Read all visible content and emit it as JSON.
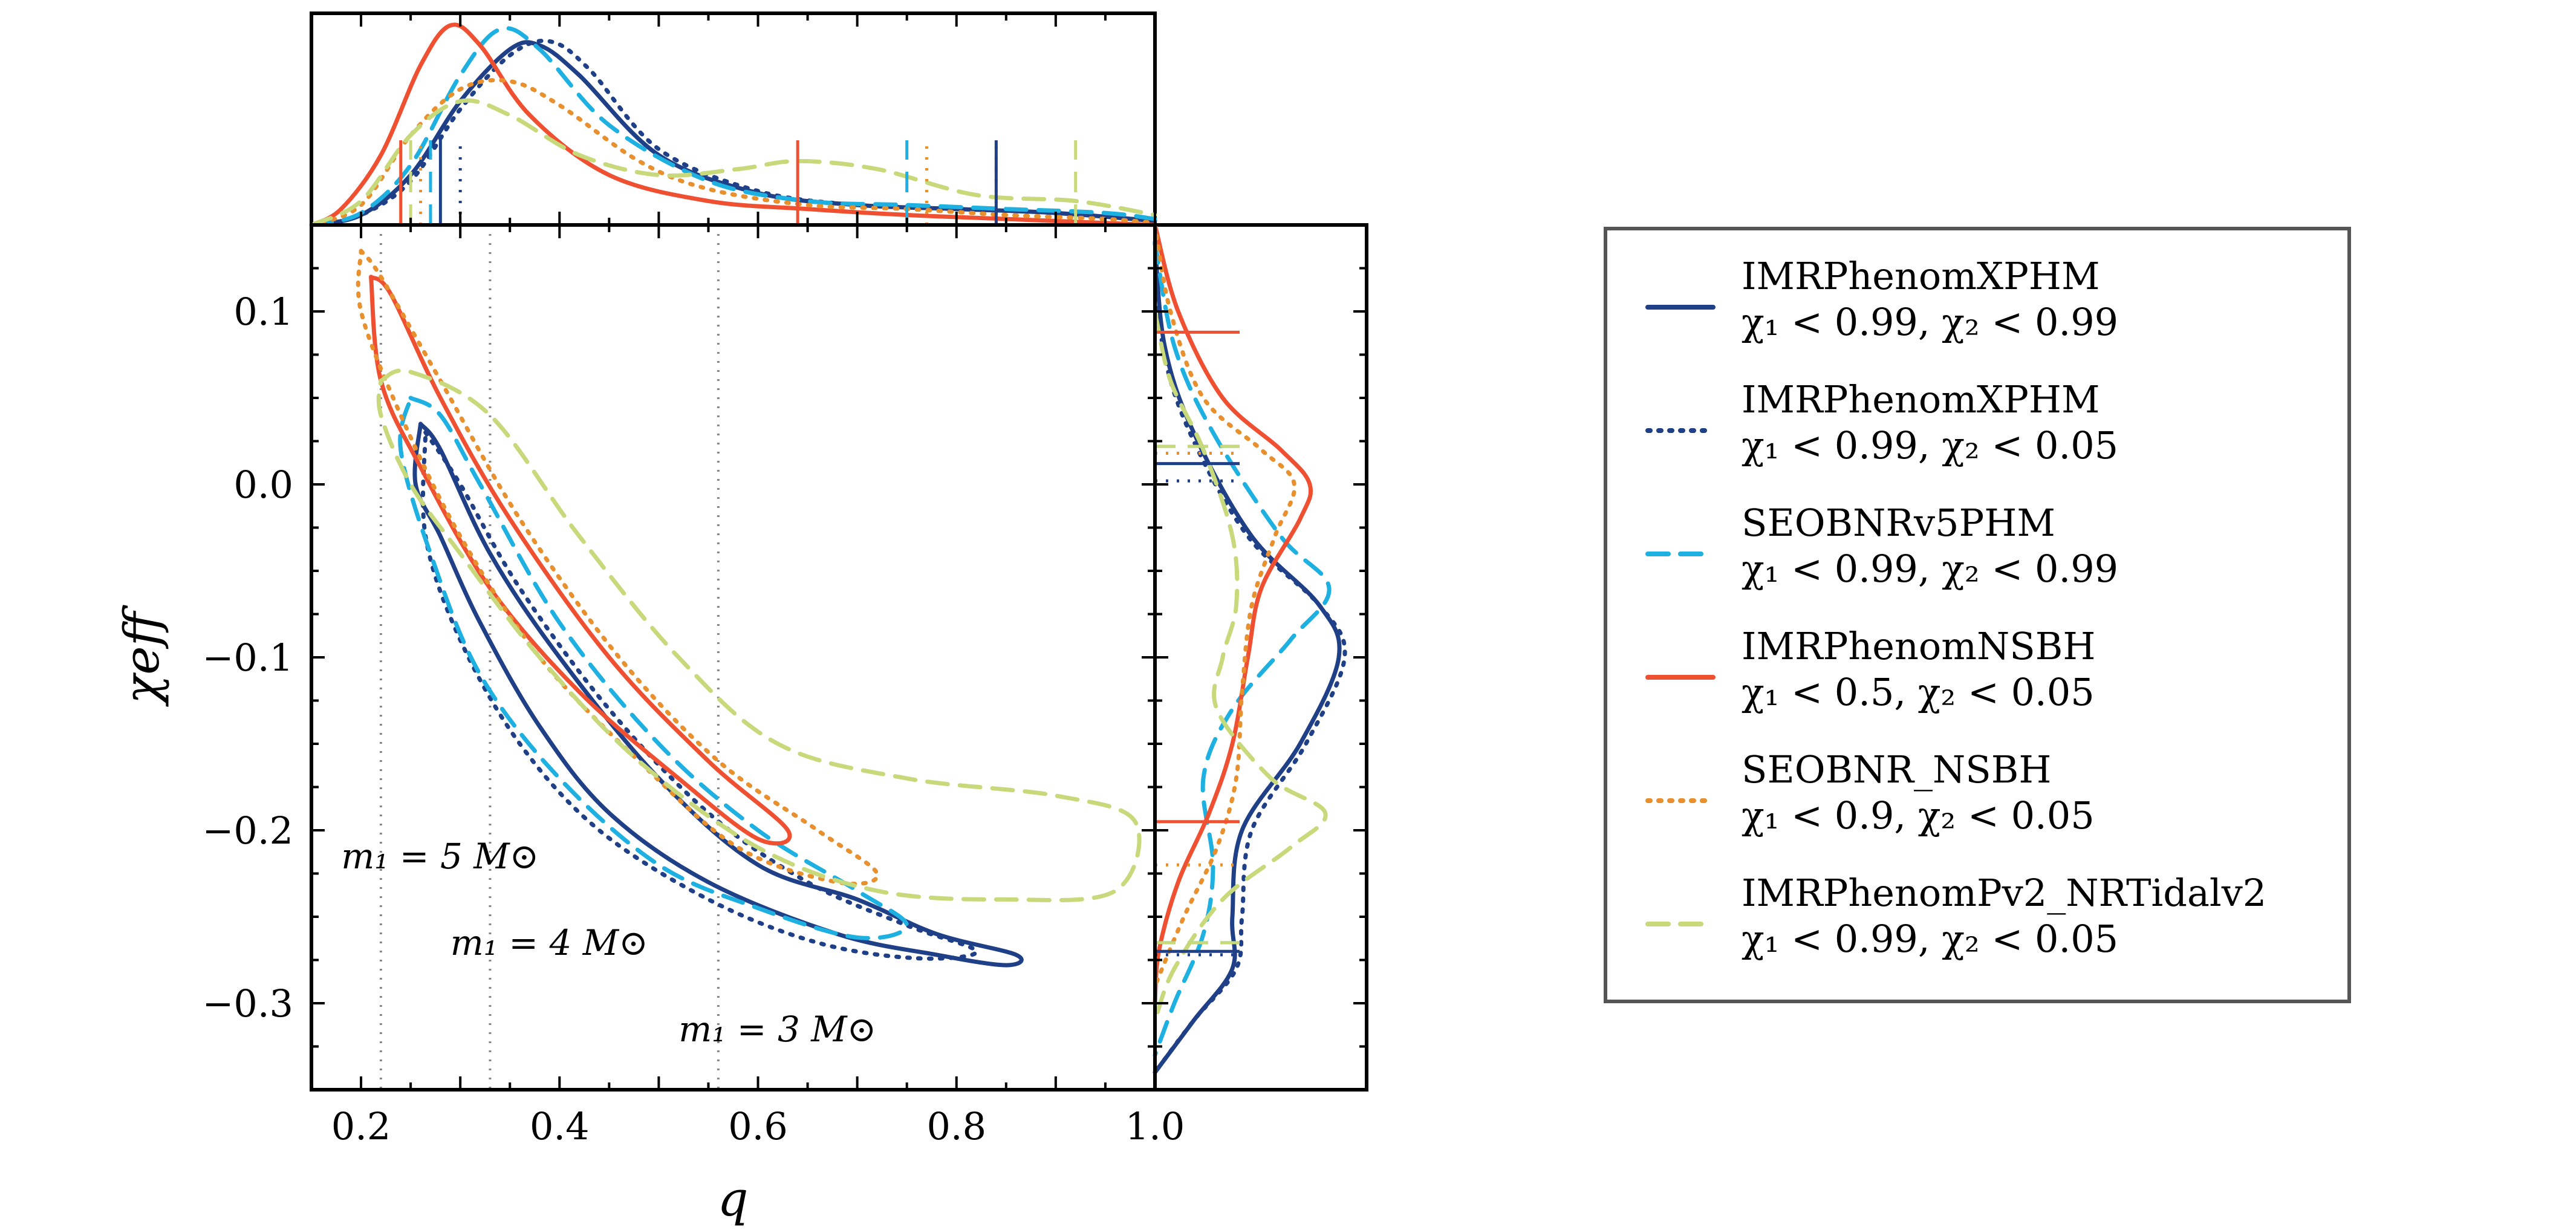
{
  "chart_data": {
    "type": "line",
    "title": "",
    "xlabel": "q",
    "ylabel": "χeff",
    "xlim": [
      0.15,
      1.0
    ],
    "ylim": [
      -0.35,
      0.15
    ],
    "xticks": [
      "0.2",
      "0.4",
      "0.6",
      "0.8",
      "1.0"
    ],
    "xtick_values": [
      0.2,
      0.4,
      0.6,
      0.8,
      1.0
    ],
    "yticks": [
      "0.1",
      "0.0",
      "−0.1",
      "−0.2",
      "−0.3"
    ],
    "ytick_values": [
      0.1,
      0.0,
      -0.1,
      -0.2,
      -0.3
    ],
    "mass_lines": [
      {
        "q": 0.22,
        "label": "m₁ = 5 M⊙",
        "label_q": 0.18,
        "label_chi": -0.222
      },
      {
        "q": 0.33,
        "label": "m₁ = 4 M⊙",
        "label_q": 0.29,
        "label_chi": -0.272
      },
      {
        "q": 0.56,
        "label": "m₁ = 3 M⊙",
        "label_q": 0.52,
        "label_chi": -0.322
      }
    ],
    "series": [
      {
        "name": "IMRPhenomXPHM",
        "constraint": "χ₁ < 0.99, χ₂ < 0.99",
        "color": "#1f3f87",
        "dash": "solid",
        "contour": [
          [
            0.26,
            0.035
          ],
          [
            0.28,
            0.02
          ],
          [
            0.33,
            -0.04
          ],
          [
            0.4,
            -0.1
          ],
          [
            0.5,
            -0.17
          ],
          [
            0.6,
            -0.22
          ],
          [
            0.7,
            -0.24
          ],
          [
            0.78,
            -0.26
          ],
          [
            0.86,
            -0.272
          ],
          [
            0.85,
            -0.278
          ],
          [
            0.78,
            -0.272
          ],
          [
            0.68,
            -0.26
          ],
          [
            0.55,
            -0.23
          ],
          [
            0.45,
            -0.19
          ],
          [
            0.38,
            -0.14
          ],
          [
            0.32,
            -0.08
          ],
          [
            0.28,
            -0.03
          ],
          [
            0.255,
            0.0
          ],
          [
            0.26,
            0.035
          ]
        ],
        "q_marginal": [
          [
            0.15,
            0.0
          ],
          [
            0.2,
            0.05
          ],
          [
            0.25,
            0.25
          ],
          [
            0.3,
            0.62
          ],
          [
            0.35,
            0.88
          ],
          [
            0.38,
            0.9
          ],
          [
            0.42,
            0.75
          ],
          [
            0.5,
            0.35
          ],
          [
            0.6,
            0.16
          ],
          [
            0.7,
            0.1
          ],
          [
            0.8,
            0.08
          ],
          [
            0.9,
            0.06
          ],
          [
            1.0,
            0.02
          ]
        ],
        "q_interval": [
          0.28,
          0.84
        ],
        "chi_marginal": [
          [
            0.14,
            0.0
          ],
          [
            0.08,
            0.05
          ],
          [
            0.03,
            0.2
          ],
          [
            -0.03,
            0.5
          ],
          [
            -0.07,
            0.85
          ],
          [
            -0.1,
            0.95
          ],
          [
            -0.15,
            0.75
          ],
          [
            -0.2,
            0.45
          ],
          [
            -0.25,
            0.4
          ],
          [
            -0.28,
            0.4
          ],
          [
            -0.31,
            0.2
          ],
          [
            -0.34,
            0.0
          ]
        ],
        "chi_interval": [
          -0.27,
          0.012
        ]
      },
      {
        "name": "IMRPhenomXPHM",
        "constraint": "χ₁ < 0.99, χ₂ < 0.05",
        "color": "#1f3f87",
        "dash": "dotted",
        "contour": [
          [
            0.265,
            0.03
          ],
          [
            0.3,
            0.0
          ],
          [
            0.36,
            -0.06
          ],
          [
            0.45,
            -0.13
          ],
          [
            0.55,
            -0.19
          ],
          [
            0.65,
            -0.23
          ],
          [
            0.75,
            -0.255
          ],
          [
            0.82,
            -0.27
          ],
          [
            0.76,
            -0.274
          ],
          [
            0.66,
            -0.265
          ],
          [
            0.55,
            -0.24
          ],
          [
            0.44,
            -0.2
          ],
          [
            0.36,
            -0.15
          ],
          [
            0.3,
            -0.09
          ],
          [
            0.265,
            -0.03
          ],
          [
            0.265,
            0.03
          ]
        ],
        "q_marginal": [
          [
            0.15,
            0.0
          ],
          [
            0.2,
            0.05
          ],
          [
            0.25,
            0.22
          ],
          [
            0.3,
            0.58
          ],
          [
            0.35,
            0.85
          ],
          [
            0.39,
            0.92
          ],
          [
            0.43,
            0.78
          ],
          [
            0.5,
            0.38
          ],
          [
            0.6,
            0.17
          ],
          [
            0.7,
            0.1
          ],
          [
            0.8,
            0.08
          ],
          [
            0.9,
            0.06
          ],
          [
            1.0,
            0.02
          ]
        ],
        "q_interval": [
          0.3,
          0.84
        ],
        "chi_marginal": [
          [
            0.14,
            0.0
          ],
          [
            0.08,
            0.04
          ],
          [
            0.03,
            0.18
          ],
          [
            -0.03,
            0.48
          ],
          [
            -0.07,
            0.85
          ],
          [
            -0.1,
            0.98
          ],
          [
            -0.15,
            0.78
          ],
          [
            -0.2,
            0.5
          ],
          [
            -0.25,
            0.45
          ],
          [
            -0.28,
            0.42
          ],
          [
            -0.31,
            0.2
          ],
          [
            -0.34,
            0.0
          ]
        ],
        "chi_interval": [
          -0.272,
          0.002
        ]
      },
      {
        "name": "SEOBNRv5PHM",
        "constraint": "χ₁ < 0.99, χ₂ < 0.99",
        "color": "#1eb0e0",
        "dash": "dashed",
        "contour": [
          [
            0.25,
            0.05
          ],
          [
            0.28,
            0.04
          ],
          [
            0.32,
            0.0
          ],
          [
            0.4,
            -0.08
          ],
          [
            0.5,
            -0.15
          ],
          [
            0.6,
            -0.2
          ],
          [
            0.7,
            -0.235
          ],
          [
            0.75,
            -0.255
          ],
          [
            0.7,
            -0.262
          ],
          [
            0.6,
            -0.245
          ],
          [
            0.5,
            -0.22
          ],
          [
            0.4,
            -0.17
          ],
          [
            0.32,
            -0.11
          ],
          [
            0.27,
            -0.04
          ],
          [
            0.24,
            0.02
          ],
          [
            0.25,
            0.05
          ]
        ],
        "q_marginal": [
          [
            0.15,
            0.0
          ],
          [
            0.2,
            0.06
          ],
          [
            0.25,
            0.3
          ],
          [
            0.3,
            0.75
          ],
          [
            0.34,
            0.98
          ],
          [
            0.38,
            0.88
          ],
          [
            0.45,
            0.5
          ],
          [
            0.55,
            0.22
          ],
          [
            0.65,
            0.12
          ],
          [
            0.75,
            0.1
          ],
          [
            0.85,
            0.08
          ],
          [
            0.95,
            0.06
          ],
          [
            1.0,
            0.03
          ]
        ],
        "q_interval": [
          0.27,
          0.75
        ],
        "chi_marginal": [
          [
            0.14,
            0.0
          ],
          [
            0.08,
            0.1
          ],
          [
            0.03,
            0.3
          ],
          [
            -0.03,
            0.65
          ],
          [
            -0.06,
            0.9
          ],
          [
            -0.09,
            0.7
          ],
          [
            -0.13,
            0.4
          ],
          [
            -0.17,
            0.25
          ],
          [
            -0.22,
            0.3
          ],
          [
            -0.26,
            0.25
          ],
          [
            -0.3,
            0.1
          ],
          [
            -0.33,
            0.0
          ]
        ],
        "chi_interval": [
          -0.265,
          0.022
        ]
      },
      {
        "name": "IMRPhenomNSBH",
        "constraint": "χ₁ < 0.5, χ₂ < 0.05",
        "color": "#f05032",
        "dash": "solid",
        "contour": [
          [
            0.21,
            0.12
          ],
          [
            0.23,
            0.11
          ],
          [
            0.28,
            0.05
          ],
          [
            0.35,
            -0.02
          ],
          [
            0.45,
            -0.1
          ],
          [
            0.55,
            -0.16
          ],
          [
            0.63,
            -0.2
          ],
          [
            0.6,
            -0.205
          ],
          [
            0.52,
            -0.17
          ],
          [
            0.42,
            -0.12
          ],
          [
            0.33,
            -0.06
          ],
          [
            0.26,
            0.01
          ],
          [
            0.22,
            0.06
          ],
          [
            0.21,
            0.12
          ]
        ],
        "q_marginal": [
          [
            0.15,
            0.0
          ],
          [
            0.18,
            0.08
          ],
          [
            0.22,
            0.35
          ],
          [
            0.26,
            0.8
          ],
          [
            0.29,
            1.0
          ],
          [
            0.32,
            0.9
          ],
          [
            0.37,
            0.55
          ],
          [
            0.45,
            0.25
          ],
          [
            0.55,
            0.12
          ],
          [
            0.65,
            0.08
          ],
          [
            0.75,
            0.05
          ],
          [
            0.85,
            0.03
          ],
          [
            1.0,
            0.0
          ]
        ],
        "q_interval": [
          0.24,
          0.64
        ],
        "chi_marginal": [
          [
            0.15,
            0.0
          ],
          [
            0.1,
            0.12
          ],
          [
            0.05,
            0.35
          ],
          [
            0.02,
            0.65
          ],
          [
            0.0,
            0.8
          ],
          [
            -0.02,
            0.75
          ],
          [
            -0.06,
            0.55
          ],
          [
            -0.1,
            0.48
          ],
          [
            -0.15,
            0.4
          ],
          [
            -0.19,
            0.28
          ],
          [
            -0.23,
            0.12
          ],
          [
            -0.27,
            0.02
          ],
          [
            -0.3,
            0.0
          ]
        ],
        "chi_interval": [
          -0.195,
          0.088
        ]
      },
      {
        "name": "SEOBNR_NSBH",
        "constraint": "χ₁ < 0.9, χ₂ < 0.05",
        "color": "#e8902e",
        "dash": "dotted",
        "contour": [
          [
            0.2,
            0.135
          ],
          [
            0.22,
            0.12
          ],
          [
            0.28,
            0.06
          ],
          [
            0.36,
            -0.02
          ],
          [
            0.46,
            -0.1
          ],
          [
            0.56,
            -0.16
          ],
          [
            0.66,
            -0.2
          ],
          [
            0.72,
            -0.225
          ],
          [
            0.68,
            -0.23
          ],
          [
            0.58,
            -0.21
          ],
          [
            0.48,
            -0.16
          ],
          [
            0.38,
            -0.1
          ],
          [
            0.3,
            -0.03
          ],
          [
            0.24,
            0.04
          ],
          [
            0.2,
            0.1
          ],
          [
            0.2,
            0.135
          ]
        ],
        "q_marginal": [
          [
            0.15,
            0.0
          ],
          [
            0.2,
            0.1
          ],
          [
            0.25,
            0.45
          ],
          [
            0.3,
            0.68
          ],
          [
            0.35,
            0.72
          ],
          [
            0.4,
            0.6
          ],
          [
            0.48,
            0.32
          ],
          [
            0.55,
            0.18
          ],
          [
            0.65,
            0.1
          ],
          [
            0.75,
            0.08
          ],
          [
            0.85,
            0.05
          ],
          [
            0.95,
            0.03
          ],
          [
            1.0,
            0.01
          ]
        ],
        "q_interval": [
          0.26,
          0.77
        ],
        "chi_marginal": [
          [
            0.15,
            0.0
          ],
          [
            0.1,
            0.08
          ],
          [
            0.05,
            0.25
          ],
          [
            0.02,
            0.55
          ],
          [
            0.0,
            0.72
          ],
          [
            -0.03,
            0.62
          ],
          [
            -0.07,
            0.5
          ],
          [
            -0.12,
            0.45
          ],
          [
            -0.17,
            0.42
          ],
          [
            -0.21,
            0.32
          ],
          [
            -0.25,
            0.15
          ],
          [
            -0.29,
            0.0
          ]
        ],
        "chi_interval": [
          -0.22,
          0.018
        ]
      },
      {
        "name": "IMRPhenomPv2_NRTidalv2",
        "constraint": "χ₁ < 0.99, χ₂ < 0.05",
        "color": "#c7d97a",
        "dash": "dashed",
        "contour": [
          [
            0.22,
            0.06
          ],
          [
            0.25,
            0.065
          ],
          [
            0.33,
            0.04
          ],
          [
            0.42,
            -0.03
          ],
          [
            0.52,
            -0.1
          ],
          [
            0.62,
            -0.15
          ],
          [
            0.75,
            -0.17
          ],
          [
            0.9,
            -0.18
          ],
          [
            0.98,
            -0.195
          ],
          [
            0.96,
            -0.235
          ],
          [
            0.85,
            -0.24
          ],
          [
            0.72,
            -0.235
          ],
          [
            0.6,
            -0.21
          ],
          [
            0.48,
            -0.16
          ],
          [
            0.38,
            -0.1
          ],
          [
            0.3,
            -0.04
          ],
          [
            0.25,
            0.0
          ],
          [
            0.22,
            0.04
          ],
          [
            0.22,
            0.06
          ]
        ],
        "q_marginal": [
          [
            0.15,
            0.0
          ],
          [
            0.2,
            0.12
          ],
          [
            0.25,
            0.45
          ],
          [
            0.3,
            0.62
          ],
          [
            0.35,
            0.55
          ],
          [
            0.42,
            0.35
          ],
          [
            0.5,
            0.25
          ],
          [
            0.58,
            0.28
          ],
          [
            0.64,
            0.32
          ],
          [
            0.72,
            0.28
          ],
          [
            0.82,
            0.15
          ],
          [
            0.92,
            0.12
          ],
          [
            1.0,
            0.05
          ]
        ],
        "q_interval": [
          0.25,
          0.92
        ],
        "chi_marginal": [
          [
            0.1,
            0.0
          ],
          [
            0.06,
            0.08
          ],
          [
            0.02,
            0.25
          ],
          [
            -0.03,
            0.4
          ],
          [
            -0.07,
            0.42
          ],
          [
            -0.1,
            0.35
          ],
          [
            -0.13,
            0.32
          ],
          [
            -0.17,
            0.6
          ],
          [
            -0.19,
            0.88
          ],
          [
            -0.21,
            0.7
          ],
          [
            -0.24,
            0.35
          ],
          [
            -0.28,
            0.1
          ],
          [
            -0.31,
            0.0
          ]
        ],
        "chi_interval": [
          -0.265,
          0.022
        ]
      }
    ]
  }
}
